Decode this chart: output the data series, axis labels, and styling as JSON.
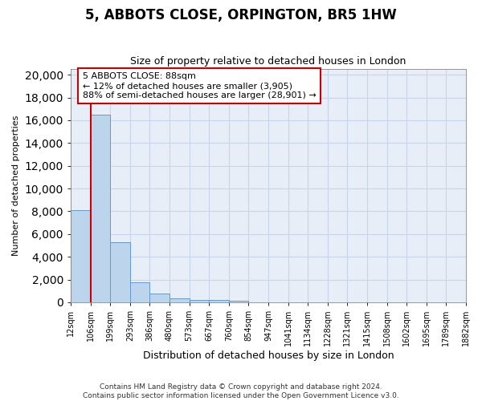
{
  "title": "5, ABBOTS CLOSE, ORPINGTON, BR5 1HW",
  "subtitle": "Size of property relative to detached houses in London",
  "xlabel": "Distribution of detached houses by size in London",
  "ylabel": "Number of detached properties",
  "footer_line1": "Contains HM Land Registry data © Crown copyright and database right 2024.",
  "footer_line2": "Contains public sector information licensed under the Open Government Licence v3.0.",
  "annotation_title": "5 ABBOTS CLOSE: 88sqm",
  "annotation_line2": "← 12% of detached houses are smaller (3,905)",
  "annotation_line3": "88% of semi-detached houses are larger (28,901) →",
  "bar_heights": [
    8100,
    16500,
    5300,
    1750,
    750,
    320,
    220,
    180,
    150,
    0,
    0,
    0,
    0,
    0,
    0,
    0,
    0,
    0,
    0,
    0
  ],
  "bar_color": "#bdd4ed",
  "bar_edge_color": "#6699cc",
  "vline_bar_index": 1,
  "vline_color": "#cc0000",
  "annotation_box_color": "#ffffff",
  "annotation_box_edge_color": "#cc0000",
  "ylim": [
    0,
    20500
  ],
  "yticks": [
    0,
    2000,
    4000,
    6000,
    8000,
    10000,
    12000,
    14000,
    16000,
    18000,
    20000
  ],
  "xtick_labels": [
    "12sqm",
    "106sqm",
    "199sqm",
    "293sqm",
    "386sqm",
    "480sqm",
    "573sqm",
    "667sqm",
    "760sqm",
    "854sqm",
    "947sqm",
    "1041sqm",
    "1134sqm",
    "1228sqm",
    "1321sqm",
    "1415sqm",
    "1508sqm",
    "1602sqm",
    "1695sqm",
    "1789sqm",
    "1882sqm"
  ],
  "grid_color": "#c8d4e8",
  "background_color": "#e8eef8"
}
